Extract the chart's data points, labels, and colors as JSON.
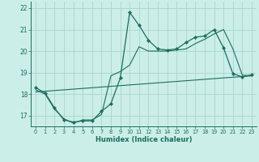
{
  "xlabel": "Humidex (Indice chaleur)",
  "bg_color": "#cceee8",
  "grid_color": "#aad4cc",
  "line_color": "#1a6e60",
  "xlim": [
    -0.5,
    23.5
  ],
  "ylim": [
    16.5,
    22.3
  ],
  "xticks": [
    0,
    1,
    2,
    3,
    4,
    5,
    6,
    7,
    8,
    9,
    10,
    11,
    12,
    13,
    14,
    15,
    16,
    17,
    18,
    19,
    20,
    21,
    22,
    23
  ],
  "yticks": [
    17,
    18,
    19,
    20,
    21,
    22
  ],
  "line1_x": [
    0,
    1,
    2,
    3,
    4,
    5,
    6,
    7,
    8,
    9,
    10,
    11,
    12,
    13,
    14,
    15,
    16,
    17,
    18,
    19,
    20,
    21,
    22,
    23
  ],
  "line1_y": [
    18.3,
    18.05,
    17.35,
    16.8,
    16.7,
    16.75,
    16.75,
    17.2,
    17.55,
    18.75,
    21.8,
    21.2,
    20.5,
    20.1,
    20.05,
    20.1,
    20.4,
    20.65,
    20.7,
    21.0,
    20.15,
    18.95,
    18.8,
    18.9
  ],
  "line2_x": [
    0,
    1,
    2,
    3,
    4,
    5,
    6,
    7,
    8,
    9,
    10,
    11,
    12,
    13,
    14,
    15,
    16,
    17,
    18,
    19,
    20,
    21,
    22,
    23
  ],
  "line2_y": [
    18.2,
    18.0,
    17.3,
    16.85,
    16.65,
    16.8,
    16.8,
    17.05,
    18.85,
    19.05,
    19.35,
    20.2,
    20.0,
    20.0,
    20.0,
    20.05,
    20.1,
    20.35,
    20.55,
    20.8,
    21.0,
    20.1,
    18.88,
    18.85
  ],
  "line3_x": [
    0,
    23
  ],
  "line3_y": [
    18.1,
    18.85
  ]
}
